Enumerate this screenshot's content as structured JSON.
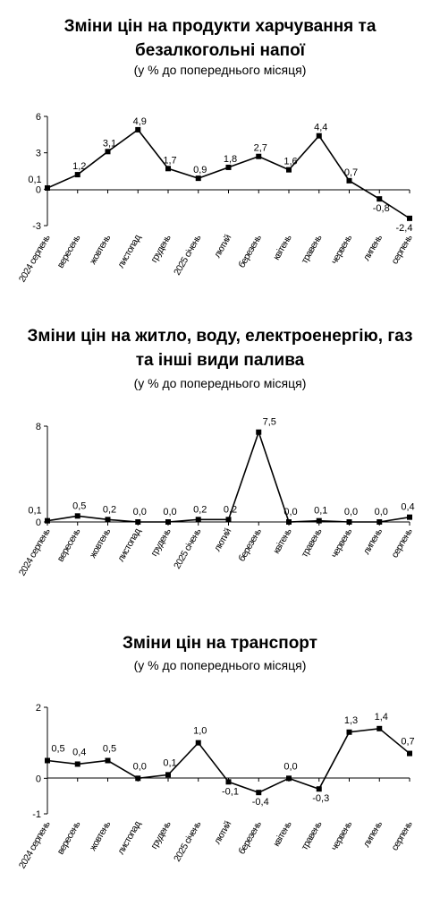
{
  "chart_data": [
    {
      "type": "line",
      "title": "Зміни цін на продукти харчування та безалкогольні напої",
      "subtitle": "(у % до попереднього місяця)",
      "categories": [
        "2024 серпень",
        "вересень",
        "жовтень",
        "листопад",
        "грудень",
        "2025 січень",
        "лютий",
        "березень",
        "квітень",
        "травень",
        "червень",
        "липень",
        "серпень"
      ],
      "series": [
        {
          "values": [
            0.1,
            1.2,
            3.1,
            4.9,
            1.7,
            0.9,
            1.8,
            2.7,
            1.6,
            4.4,
            0.7,
            -0.8,
            -2.4
          ]
        }
      ],
      "labels": [
        "0,1",
        "1,2",
        "3,1",
        "4,9",
        "1,7",
        "0,9",
        "1,8",
        "2,7",
        "1,6",
        "4,4",
        "0,7",
        "-0,8",
        "-2,4"
      ],
      "yticks": [
        "6",
        "3",
        "0",
        "-3"
      ],
      "ylim": [
        -3,
        6
      ],
      "grid": false,
      "legend": "none"
    },
    {
      "type": "line",
      "title": "Зміни цін на житло, воду, електроенергію, газ та інші види палива",
      "subtitle": "(у % до попереднього місяця)",
      "categories": [
        "2024 серпень",
        "вересень",
        "жовтень",
        "листопад",
        "грудень",
        "2025 січень",
        "лютий",
        "березень",
        "квітень",
        "травень",
        "червень",
        "липень",
        "серпень"
      ],
      "series": [
        {
          "values": [
            0.1,
            0.5,
            0.2,
            0.0,
            0.0,
            0.2,
            0.2,
            7.5,
            0.0,
            0.1,
            0.0,
            0.0,
            0.4
          ]
        }
      ],
      "labels": [
        "0,1",
        "0,5",
        "0,2",
        "0,0",
        "0,0",
        "0,2",
        "0,2",
        "7,5",
        "0,0",
        "0,1",
        "0,0",
        "0,0",
        "0,4"
      ],
      "yticks": [
        "8",
        "0"
      ],
      "ylim": [
        0,
        8
      ],
      "grid": false,
      "legend": "none"
    },
    {
      "type": "line",
      "title": "Зміни цін на транспорт",
      "subtitle": "(у % до попереднього місяця)",
      "categories": [
        "2024 серпень",
        "вересень",
        "жовтень",
        "листопад",
        "грудень",
        "2025 січень",
        "лютий",
        "березень",
        "квітень",
        "травень",
        "червень",
        "липень",
        "серпень"
      ],
      "series": [
        {
          "values": [
            0.5,
            0.4,
            0.5,
            0.0,
            0.1,
            1.0,
            -0.1,
            -0.4,
            0.0,
            -0.3,
            1.3,
            1.4,
            0.7
          ]
        }
      ],
      "labels": [
        "0,5",
        "0,4",
        "0,5",
        "0,0",
        "0,1",
        "1,0",
        "-0,1",
        "-0,4",
        "0,0",
        "-0,3",
        "1,3",
        "1,4",
        "0,7"
      ],
      "yticks": [
        "2",
        "0",
        "-1"
      ],
      "ylim": [
        -1,
        2
      ],
      "grid": false,
      "legend": "none"
    }
  ]
}
